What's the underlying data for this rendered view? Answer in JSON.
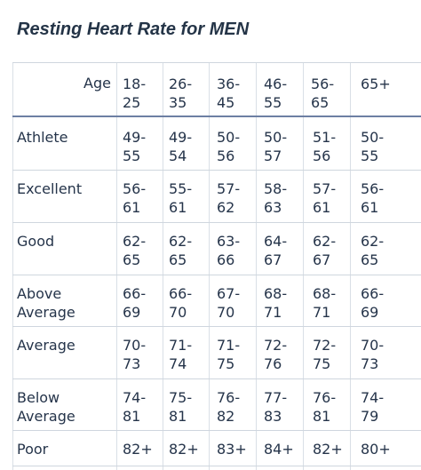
{
  "title": "Resting Heart Rate for MEN",
  "header": {
    "age_label": "Age",
    "ranges": [
      "18-\n25",
      "26-\n35",
      "36-\n45",
      "46-\n55",
      "56-\n65",
      "65+"
    ]
  },
  "rows": [
    {
      "label": "Athlete",
      "values": [
        "49-\n55",
        "49-\n54",
        "50-\n56",
        "50-\n57",
        "51-\n56",
        "50-\n55"
      ]
    },
    {
      "label": "Excellent",
      "values": [
        "56-\n61",
        "55-\n61",
        "57-\n62",
        "58-\n63",
        "57-\n61",
        "56-\n61"
      ]
    },
    {
      "label": "Good",
      "values": [
        "62-\n65",
        "62-\n65",
        "63-\n66",
        "64-\n67",
        "62-\n67",
        "62-\n65"
      ]
    },
    {
      "label": "Above\nAverage",
      "values": [
        "66-\n69",
        "66-\n70",
        "67-\n70",
        "68-\n71",
        "68-\n71",
        "66-\n69"
      ]
    },
    {
      "label": "Average",
      "values": [
        "70-\n73",
        "71-\n74",
        "71-\n75",
        "72-\n76",
        "72-\n75",
        "70-\n73"
      ]
    },
    {
      "label": "Below\nAverage",
      "values": [
        "74-\n81",
        "75-\n81",
        "76-\n82",
        "77-\n83",
        "76-\n81",
        "74-\n79"
      ]
    },
    {
      "label": "Poor",
      "values": [
        "82+",
        "82+",
        "83+",
        "84+",
        "82+",
        "80+"
      ]
    }
  ]
}
